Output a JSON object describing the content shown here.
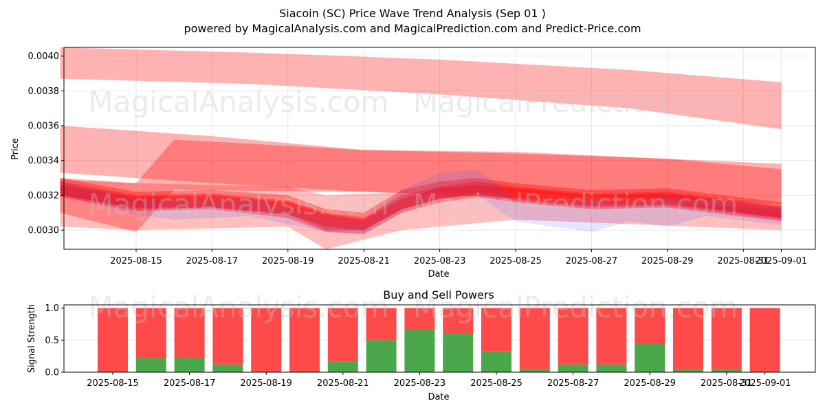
{
  "header": {
    "title": "Siacoin (SC) Price Wave Trend Analysis (Sep 01 )",
    "subtitle": "powered by MagicalAnalysis.com and MagicalPrediction.com and Predict-Price.com"
  },
  "watermarks": [
    "MagicalAnalysis.com",
    "MagicalPrediction.com"
  ],
  "colors": {
    "band": "#ff0000",
    "band_blue": "#4455ff",
    "buy": "#4aa84a",
    "sell": "#ff4a4a"
  },
  "chart_data": [
    {
      "type": "area",
      "title": "",
      "xlabel": "Date",
      "ylabel": "Price",
      "ylim": [
        0.00289,
        0.00405
      ],
      "yticks": [
        "0.0030",
        "0.0032",
        "0.0034",
        "0.0036",
        "0.0038",
        "0.0040"
      ],
      "xticks": [
        "2025-08-15",
        "2025-08-17",
        "2025-08-19",
        "2025-08-21",
        "2025-08-23",
        "2025-08-25",
        "2025-08-27",
        "2025-08-29",
        "2025-08-31",
        "2025-09-01"
      ],
      "grid": true,
      "bands": [
        {
          "x": [
            "2025-08-13",
            "2025-08-18",
            "2025-08-23",
            "2025-08-28",
            "2025-09-01"
          ],
          "upper": [
            0.00405,
            0.00402,
            0.00398,
            0.00392,
            0.00385
          ],
          "lower": [
            0.00387,
            0.00384,
            0.00378,
            0.0037,
            0.00358
          ],
          "alpha": 0.3
        },
        {
          "x": [
            "2025-08-13",
            "2025-08-17",
            "2025-08-21",
            "2025-08-25",
            "2025-08-29",
            "2025-09-01"
          ],
          "upper": [
            0.0036,
            0.00354,
            0.00346,
            0.00344,
            0.00341,
            0.00338
          ],
          "lower": [
            0.00333,
            0.00327,
            0.00322,
            0.00321,
            0.00318,
            0.00315
          ],
          "alpha": 0.3
        },
        {
          "x": [
            "2025-08-13",
            "2025-08-15",
            "2025-08-16",
            "2025-08-21",
            "2025-08-25",
            "2025-08-29",
            "2025-09-01"
          ],
          "upper": [
            0.0033,
            0.00327,
            0.00352,
            0.00346,
            0.00345,
            0.00341,
            0.00335
          ],
          "lower": [
            0.0031,
            0.00299,
            0.00323,
            0.00322,
            0.00319,
            0.00316,
            0.00307
          ],
          "alpha": 0.3
        },
        {
          "x": [
            "2025-08-13",
            "2025-08-15",
            "2025-08-19",
            "2025-08-20",
            "2025-08-22",
            "2025-08-25",
            "2025-09-01"
          ],
          "upper": [
            0.00329,
            0.00327,
            0.00325,
            0.0032,
            0.00322,
            0.0032,
            0.00312
          ],
          "lower": [
            0.00302,
            0.003,
            0.00302,
            0.00289,
            0.003,
            0.00306,
            0.003
          ],
          "alpha": 0.25
        }
      ],
      "waves": [
        {
          "x": [
            "2025-08-13",
            "2025-08-15",
            "2025-08-17",
            "2025-08-19",
            "2025-08-20",
            "2025-08-21",
            "2025-08-22",
            "2025-08-23",
            "2025-08-24",
            "2025-08-25",
            "2025-08-27",
            "2025-08-29",
            "2025-09-01"
          ],
          "upper": [
            0.0033,
            0.00322,
            0.00323,
            0.0032,
            0.00312,
            0.0031,
            0.00323,
            0.00328,
            0.0033,
            0.00327,
            0.00323,
            0.00324,
            0.00316
          ],
          "lower": [
            0.0032,
            0.00312,
            0.00313,
            0.00309,
            0.003,
            0.003,
            0.00312,
            0.00318,
            0.0032,
            0.00317,
            0.00313,
            0.00314,
            0.00306
          ],
          "alpha": 0.35
        },
        {
          "x": [
            "2025-08-13",
            "2025-08-15",
            "2025-08-17",
            "2025-08-19",
            "2025-08-20",
            "2025-08-21",
            "2025-08-22",
            "2025-08-23",
            "2025-08-24",
            "2025-08-25",
            "2025-08-27",
            "2025-08-29",
            "2025-09-01"
          ],
          "upper": [
            0.00328,
            0.0032,
            0.00321,
            0.00317,
            0.0031,
            0.00307,
            0.0032,
            0.00325,
            0.00328,
            0.00325,
            0.00321,
            0.00322,
            0.00314
          ],
          "lower": [
            0.00319,
            0.00311,
            0.00312,
            0.00307,
            0.00299,
            0.00298,
            0.0031,
            0.00316,
            0.00319,
            0.00316,
            0.00312,
            0.00313,
            0.00305
          ],
          "alpha": 0.35
        },
        {
          "x": [
            "2025-08-13",
            "2025-08-15",
            "2025-08-17",
            "2025-08-19",
            "2025-08-20",
            "2025-08-21",
            "2025-08-22",
            "2025-08-23",
            "2025-08-24",
            "2025-08-25",
            "2025-08-27",
            "2025-08-29",
            "2025-09-01"
          ],
          "upper": [
            0.00326,
            0.00319,
            0.0032,
            0.00316,
            0.00309,
            0.00306,
            0.00318,
            0.00324,
            0.00326,
            0.00324,
            0.0032,
            0.00321,
            0.00313
          ],
          "lower": [
            0.0032,
            0.00313,
            0.00313,
            0.00309,
            0.00302,
            0.003,
            0.00312,
            0.00318,
            0.00321,
            0.00318,
            0.00314,
            0.00315,
            0.00307
          ],
          "alpha": 0.4
        },
        {
          "x": [
            "2025-08-13",
            "2025-08-15",
            "2025-08-16",
            "2025-08-18",
            "2025-08-20",
            "2025-08-21",
            "2025-08-22",
            "2025-08-23",
            "2025-08-24",
            "2025-08-25",
            "2025-08-26",
            "2025-08-27",
            "2025-08-28",
            "2025-08-29",
            "2025-08-30",
            "2025-09-01"
          ],
          "upper": [
            0.00328,
            0.00318,
            0.00318,
            0.00318,
            0.00308,
            0.00305,
            0.00323,
            0.00333,
            0.00335,
            0.00318,
            0.00316,
            0.00318,
            0.00316,
            0.0032,
            0.00318,
            0.00313
          ],
          "lower": [
            0.0032,
            0.00309,
            0.00306,
            0.00308,
            0.00299,
            0.00297,
            0.0031,
            0.00318,
            0.0032,
            0.00305,
            0.00302,
            0.00299,
            0.00305,
            0.00302,
            0.00308,
            0.00303
          ],
          "alpha": 0.15,
          "color": "blue"
        }
      ]
    },
    {
      "type": "bar",
      "title": "Buy and Sell Powers",
      "xlabel": "Date",
      "ylabel": "Signal Strength",
      "ylim": [
        0,
        1.05
      ],
      "yticks": [
        "0.0",
        "0.5",
        "1.0"
      ],
      "xticks": [
        "2025-08-15",
        "2025-08-17",
        "2025-08-19",
        "2025-08-21",
        "2025-08-23",
        "2025-08-25",
        "2025-08-27",
        "2025-08-29",
        "2025-08-31",
        "2025-09-01"
      ],
      "grid": true,
      "categories": [
        "2025-08-15",
        "2025-08-16",
        "2025-08-17",
        "2025-08-18",
        "2025-08-19",
        "2025-08-20",
        "2025-08-21",
        "2025-08-22",
        "2025-08-23",
        "2025-08-24",
        "2025-08-25",
        "2025-08-26",
        "2025-08-27",
        "2025-08-28",
        "2025-08-29",
        "2025-08-30",
        "2025-08-31",
        "2025-09-01"
      ],
      "series": [
        {
          "name": "Buy",
          "values": [
            0.0,
            0.22,
            0.22,
            0.12,
            0.0,
            0.0,
            0.17,
            0.5,
            0.67,
            0.61,
            0.33,
            0.05,
            0.12,
            0.12,
            0.45,
            0.05,
            0.05,
            0.0
          ]
        },
        {
          "name": "Sell",
          "values": [
            1.0,
            0.78,
            0.78,
            0.88,
            1.0,
            1.0,
            0.83,
            0.5,
            0.33,
            0.39,
            0.67,
            0.95,
            0.88,
            0.88,
            0.55,
            0.95,
            0.95,
            1.0
          ]
        }
      ]
    }
  ]
}
